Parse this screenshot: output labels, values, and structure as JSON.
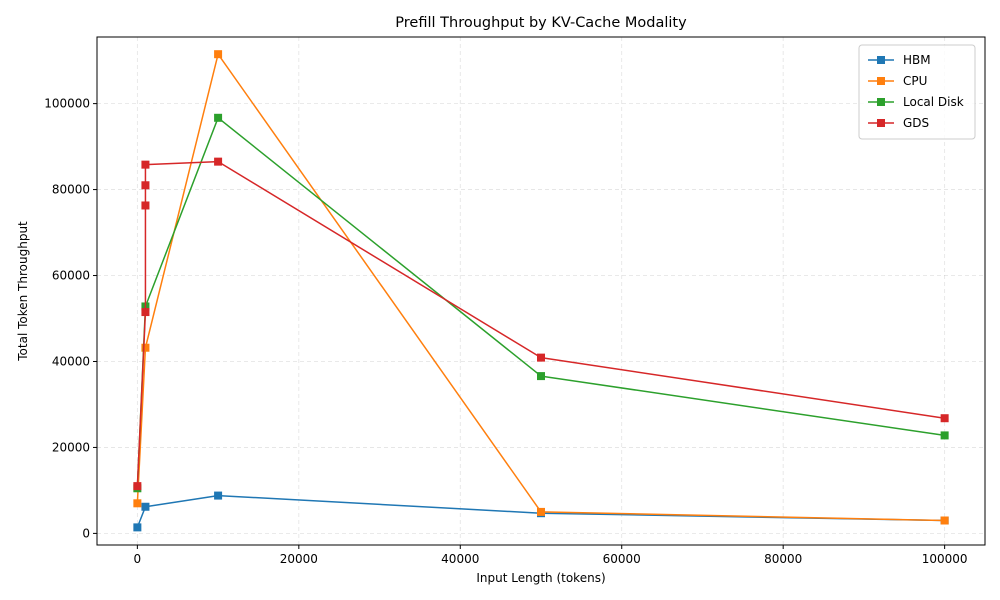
{
  "chart_data": {
    "type": "line",
    "title": "Prefill Throughput by KV-Cache Modality",
    "xlabel": "Input Length (tokens)",
    "ylabel": "Total Token Throughput",
    "xlim": [
      -5000,
      105000
    ],
    "ylim": [
      -2700,
      115500
    ],
    "xticks": [
      0,
      20000,
      40000,
      60000,
      80000,
      100000
    ],
    "yticks": [
      0,
      20000,
      40000,
      60000,
      80000,
      100000
    ],
    "grid": true,
    "legend_position": "top-right",
    "marker": "square",
    "series": [
      {
        "name": "HBM",
        "color": "#1f77b4",
        "points": [
          [
            0,
            1400
          ],
          [
            1000,
            6200
          ],
          [
            10000,
            8800
          ],
          [
            50000,
            4700
          ],
          [
            100000,
            3000
          ]
        ]
      },
      {
        "name": "CPU",
        "color": "#ff7f0e",
        "points": [
          [
            0,
            7000
          ],
          [
            1000,
            43200
          ],
          [
            10000,
            111500
          ],
          [
            50000,
            5000
          ],
          [
            100000,
            3000
          ]
        ]
      },
      {
        "name": "Local Disk",
        "color": "#2ca02c",
        "points": [
          [
            0,
            10500
          ],
          [
            1000,
            52800
          ],
          [
            10000,
            96700
          ],
          [
            50000,
            36600
          ],
          [
            100000,
            22800
          ]
        ]
      },
      {
        "name": "GDS",
        "color": "#d62728",
        "points": [
          [
            0,
            11000
          ],
          [
            1000,
            51500
          ],
          [
            1000,
            76300
          ],
          [
            1000,
            81000
          ],
          [
            1000,
            85800
          ],
          [
            10000,
            86500
          ],
          [
            50000,
            40900
          ],
          [
            100000,
            26800
          ]
        ]
      }
    ]
  }
}
